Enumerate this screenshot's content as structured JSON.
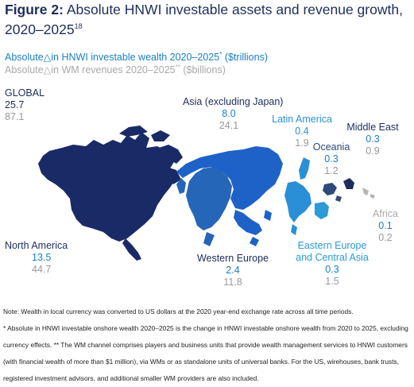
{
  "figure": {
    "label": "Figure 2:",
    "title": "Absolute HNWI investable assets and revenue growth, 2020–2025",
    "footnote_ref": "18"
  },
  "legend": {
    "wealth_prefix": "Absolute",
    "wealth_text": "in HNWI investable wealth 2020–2025",
    "wealth_mark": "*",
    "wealth_unit": "($trillions)",
    "revenue_prefix": "Absolute",
    "revenue_text": "in WM revenues 2020–2025",
    "revenue_mark": "**",
    "revenue_unit": "($billions)",
    "delta_symbol": "△",
    "wealth_color": "#1a7fc3",
    "revenue_color": "#a9a9a9"
  },
  "regions": {
    "global": {
      "name": "GLOBAL",
      "wealth": "25.7",
      "revenue": "87.1",
      "color": "#1d2d5b"
    },
    "asia": {
      "name": "Asia (excluding Japan)",
      "wealth": "8.0",
      "revenue": "24.1",
      "color": "#1a7fc3",
      "map_color": "#1e62c8"
    },
    "latin_america": {
      "name": "Latin America",
      "wealth": "0.4",
      "revenue": "1.9",
      "color": "#2a8fd6",
      "map_color": "#2a8fd6"
    },
    "middle_east": {
      "name": "Middle East",
      "wealth": "0.3",
      "revenue": "0.9",
      "color": "#1d2d5b",
      "map_color": "#1d2d5b"
    },
    "oceania": {
      "name": "Oceania",
      "wealth": "0.3",
      "revenue": "1.2",
      "color": "#2d4a7a",
      "map_color": "#2d4a7a"
    },
    "north_america": {
      "name": "North America",
      "wealth": "13.5",
      "revenue": "44.7",
      "color": "#1d2d5b",
      "map_color": "#1a2a66"
    },
    "western_europe": {
      "name": "Western Europe",
      "wealth": "2.4",
      "revenue": "11.8",
      "color": "#1a6fb5",
      "map_color": "#2566b8"
    },
    "eastern_europe": {
      "name": "Eastern Europe and Central Asia",
      "name_line1": "Eastern Europe",
      "name_line2": "and Central Asia",
      "wealth": "0.3",
      "revenue": "1.5",
      "color": "#2a9ad8",
      "map_color": "#2a9ad8"
    },
    "africa": {
      "name": "Africa",
      "wealth": "0.1",
      "revenue": "0.2",
      "color": "#a9a9a9",
      "map_color": "#b5b5b5"
    }
  },
  "notes": {
    "note1": "Note: Wealth in local currency was converted to US dollars at the 2020 year-end exchange rate across all time periods.",
    "note2": "* Absolute in HNWI investable onshore wealth 2020–2025 is the change in HNWI investable onshore wealth from 2020 to 2025, excluding currency effects. ** The WM channel comprises players and business units that provide wealth management services to HNWI customers (with financial wealth of more than $1 million), via WMs or as standalone units of universal banks. For the US, wirehouses, bank trusts, registered investment advisors, and additional smaller WM providers are also included."
  }
}
